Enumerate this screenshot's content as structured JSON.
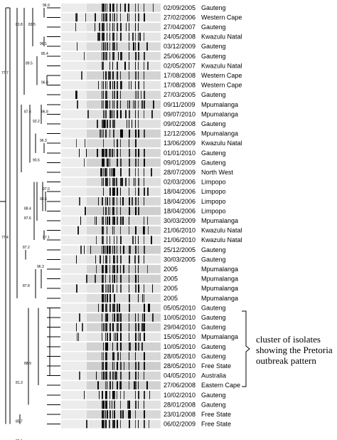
{
  "rows": [
    {
      "date": "02/09/2005",
      "province": "Gauteng"
    },
    {
      "date": "27/02/2006",
      "province": "Western Cape"
    },
    {
      "date": "27/04/2007",
      "province": "Gauteng"
    },
    {
      "date": "24/05/2008",
      "province": "Kwazulu Natal"
    },
    {
      "date": "03/12/2009",
      "province": "Gauteng"
    },
    {
      "date": "25/06/2006",
      "province": "Gauteng"
    },
    {
      "date": "02/05/2007",
      "province": "Kwazulu Natal"
    },
    {
      "date": "17/08/2008",
      "province": "Western Cape"
    },
    {
      "date": "17/08/2008",
      "province": "Western Cape"
    },
    {
      "date": "27/03/2005",
      "province": "Gauteng"
    },
    {
      "date": "09/11/2009",
      "province": "Mpumalanga"
    },
    {
      "date": "09/07/2010",
      "province": "Mpumalanga"
    },
    {
      "date": "09/02/2008",
      "province": "Gauteng"
    },
    {
      "date": "12/12/2006",
      "province": "Mpumalanga"
    },
    {
      "date": "13/06/2009",
      "province": "Kwazulu Natal"
    },
    {
      "date": "01/01/2010",
      "province": "Gauteng"
    },
    {
      "date": "09/01/2009",
      "province": "Gauteng"
    },
    {
      "date": "28/07/2009",
      "province": "North West"
    },
    {
      "date": "02/03/2006",
      "province": "Limpopo"
    },
    {
      "date": "18/04/2006",
      "province": "Limpopo"
    },
    {
      "date": "18/04/2006",
      "province": "Limpopo"
    },
    {
      "date": "18/04/2006",
      "province": "Limpopo"
    },
    {
      "date": "30/03/2009",
      "province": "Mpumalanga"
    },
    {
      "date": "21/06/2010",
      "province": "Kwazulu Natal"
    },
    {
      "date": "21/06/2010",
      "province": "Kwazulu Natal"
    },
    {
      "date": "25/12/2005",
      "province": "Gauteng"
    },
    {
      "date": "30/03/2005",
      "province": "Gauteng"
    },
    {
      "date": "2005",
      "province": "Mpumalanga"
    },
    {
      "date": "2005",
      "province": "Mpumalanga"
    },
    {
      "date": "2005",
      "province": "Mpumalanga"
    },
    {
      "date": "2005",
      "province": "Mpumalanga"
    },
    {
      "date": "05/05/2010",
      "province": "Gauteng"
    },
    {
      "date": "10/05/2010",
      "province": "Gauteng"
    },
    {
      "date": "29/04/2010",
      "province": "Gauteng"
    },
    {
      "date": "15/05/2010",
      "province": "Mpumalanga"
    },
    {
      "date": "10/05/2010",
      "province": "Gauteng"
    },
    {
      "date": "28/05/2010",
      "province": "Gauteng"
    },
    {
      "date": "28/05/2010",
      "province": "Free State"
    },
    {
      "date": "04/05/2010",
      "province": "Australia"
    },
    {
      "date": "27/06/2008",
      "province": "Eastern Cape"
    },
    {
      "date": "10/02/2010",
      "province": "Gauteng"
    },
    {
      "date": "28/01/2008",
      "province": "Gauteng"
    },
    {
      "date": "23/01/2008",
      "province": "Free State"
    },
    {
      "date": "06/02/2009",
      "province": "Free State"
    }
  ],
  "node_labels": [
    "96.9",
    "83.8",
    "83.5",
    "96.1",
    "85.4",
    "89.5",
    "96.0",
    "77.7",
    "87.6",
    "96.8",
    "92.2",
    "96.3",
    "90.6",
    "97.0",
    "93.6",
    "88.4",
    "87.6",
    "97.1",
    "87.2",
    "96.3",
    "87.8",
    "77.4",
    "88.9",
    "81.3",
    "85.7",
    "85.1"
  ],
  "annotation": {
    "lines": [
      "cluster of isolates",
      "showing the Pretoria",
      "outbreak pattern"
    ]
  }
}
